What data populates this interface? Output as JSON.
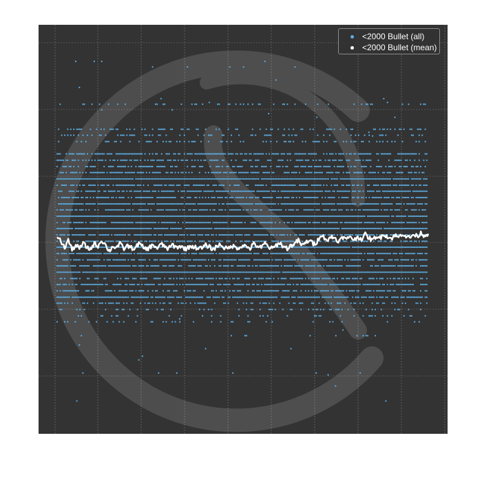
{
  "chart_data": {
    "type": "scatter",
    "title": "",
    "xlabel": "",
    "ylabel": "",
    "grid": true,
    "legend_position": "top-right",
    "background_color": "#333333",
    "grid_color": "#7a7a7a",
    "xlim": [
      0,
      100
    ],
    "ylim": [
      0,
      100
    ],
    "series": [
      {
        "name": "<2000 Bullet (all)",
        "kind": "scatter",
        "color": "#5dade2",
        "levels": [
          {
            "y": 93.5,
            "density": 0.02
          },
          {
            "y": 83.5,
            "density": 0.18
          },
          {
            "y": 76.8,
            "density": 0.35
          },
          {
            "y": 75.2,
            "density": 0.25
          },
          {
            "y": 73.5,
            "density": 0.3
          },
          {
            "y": 70.2,
            "density": 0.75
          },
          {
            "y": 68.5,
            "density": 0.5
          },
          {
            "y": 66.8,
            "density": 0.55
          },
          {
            "y": 65.2,
            "density": 0.7
          },
          {
            "y": 63.5,
            "density": 0.98
          },
          {
            "y": 61.8,
            "density": 0.7
          },
          {
            "y": 60.2,
            "density": 0.85
          },
          {
            "y": 58.5,
            "density": 0.75
          },
          {
            "y": 56.8,
            "density": 0.92
          },
          {
            "y": 55.2,
            "density": 0.7
          },
          {
            "y": 53.5,
            "density": 0.98
          },
          {
            "y": 51.8,
            "density": 0.8
          },
          {
            "y": 50.2,
            "density": 0.95
          },
          {
            "y": 48.5,
            "density": 0.8
          },
          {
            "y": 46.8,
            "density": 0.7
          },
          {
            "y": 45.2,
            "density": 0.98
          },
          {
            "y": 43.5,
            "density": 0.9
          },
          {
            "y": 41.8,
            "density": 0.75
          },
          {
            "y": 40.2,
            "density": 0.8
          },
          {
            "y": 38.5,
            "density": 0.98
          },
          {
            "y": 36.8,
            "density": 0.6
          },
          {
            "y": 35.2,
            "density": 0.75
          },
          {
            "y": 33.5,
            "density": 0.55
          },
          {
            "y": 31.8,
            "density": 0.85
          },
          {
            "y": 30.2,
            "density": 0.4
          },
          {
            "y": 28.5,
            "density": 0.3
          },
          {
            "y": 26.8,
            "density": 0.2
          },
          {
            "y": 25.2,
            "density": 0.15
          },
          {
            "y": 21.5,
            "density": 0.03
          },
          {
            "y": 11.5,
            "density": 0.02
          },
          {
            "y": 4.0,
            "density": 0.01
          }
        ],
        "outliers": [
          [
            5,
            95
          ],
          [
            10,
            95
          ],
          [
            12,
            95
          ],
          [
            56,
            95
          ],
          [
            6,
            88
          ],
          [
            59,
            90
          ],
          [
            88,
            85
          ],
          [
            89,
            84
          ],
          [
            12,
            82
          ],
          [
            28,
            85
          ],
          [
            31,
            82
          ],
          [
            41,
            84
          ],
          [
            57,
            81
          ],
          [
            70,
            80
          ],
          [
            91,
            80
          ],
          [
            84,
            76
          ],
          [
            85,
            75
          ],
          [
            23,
            16
          ],
          [
            40,
            18
          ],
          [
            63,
            18
          ],
          [
            77,
            23
          ],
          [
            6,
            19
          ],
          [
            75,
            8
          ],
          [
            73,
            11
          ],
          [
            33,
            26
          ],
          [
            22,
            15
          ]
        ]
      },
      {
        "name": "<2000 Bullet (mean)",
        "kind": "line",
        "color": "#ffffff",
        "x": [
          0,
          1,
          2,
          3,
          4,
          5,
          6,
          7,
          8,
          9,
          10,
          11,
          12,
          13,
          14,
          15,
          16,
          17,
          18,
          19,
          20,
          21,
          22,
          23,
          24,
          25,
          26,
          27,
          28,
          29,
          30,
          31,
          32,
          33,
          34,
          35,
          36,
          37,
          38,
          39,
          40,
          41,
          42,
          43,
          44,
          45,
          46,
          47,
          48,
          49,
          50,
          51,
          52,
          53,
          54,
          55,
          56,
          57,
          58,
          59,
          60,
          61,
          62,
          63,
          64,
          65,
          66,
          67,
          68,
          69,
          70,
          71,
          72,
          73,
          74,
          75,
          76,
          77,
          78,
          79,
          80,
          81,
          82,
          83,
          84,
          85,
          86,
          87,
          88,
          89,
          90,
          91,
          92,
          93,
          94,
          95,
          96,
          97,
          98,
          99,
          100
        ],
        "y": [
          48.2,
          46.8,
          45.0,
          47.2,
          44.5,
          45.8,
          44.8,
          46.3,
          45.1,
          44.7,
          46.2,
          45.5,
          47.1,
          45.8,
          44.2,
          45.4,
          45.2,
          46.1,
          44.8,
          45.6,
          45.0,
          44.9,
          46.2,
          45.3,
          44.6,
          45.2,
          45.8,
          44.9,
          46.0,
          45.4,
          44.7,
          45.9,
          45.1,
          45.5,
          45.0,
          44.8,
          45.6,
          45.2,
          45.0,
          44.9,
          45.7,
          45.3,
          44.6,
          45.4,
          46.0,
          45.1,
          44.7,
          45.6,
          45.2,
          45.0,
          45.8,
          45.3,
          44.9,
          46.1,
          45.5,
          45.0,
          46.3,
          45.2,
          44.8,
          45.7,
          46.4,
          45.3,
          44.9,
          45.6,
          46.2,
          47.0,
          45.6,
          46.4,
          47.2,
          46.0,
          46.6,
          48.6,
          47.8,
          47.0,
          48.1,
          47.5,
          46.8,
          47.9,
          47.2,
          48.3,
          47.0,
          48.0,
          47.4,
          48.6,
          47.7,
          47.0,
          48.2,
          47.6,
          48.8,
          48.0,
          47.5,
          48.4,
          47.8,
          48.9,
          48.2,
          47.7,
          48.6,
          48.1,
          49.0,
          48.3,
          48.8
        ]
      }
    ]
  }
}
